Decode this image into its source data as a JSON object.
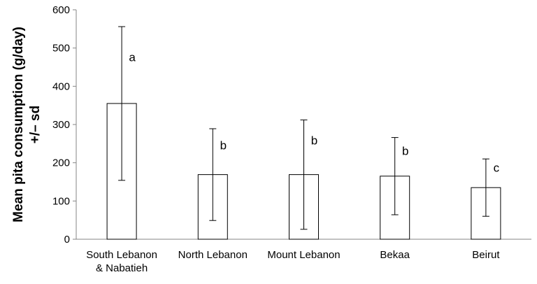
{
  "chart_data": {
    "type": "bar",
    "title": "",
    "xlabel": "",
    "ylabel_lines": [
      "Mean pita consumption (g/day)",
      "+/– sd"
    ],
    "ylim": [
      0,
      600
    ],
    "yticks": [
      0,
      100,
      200,
      300,
      400,
      500,
      600
    ],
    "categories": [
      [
        "South Lebanon",
        "& Nabatieh"
      ],
      [
        "North Lebanon"
      ],
      [
        "Mount Lebanon"
      ],
      [
        "Bekaa"
      ],
      [
        "Beirut"
      ]
    ],
    "values": [
      355,
      169,
      169,
      165,
      135
    ],
    "error_sd": [
      201,
      120,
      143,
      101,
      75
    ],
    "significance_labels": [
      "a",
      "b",
      "b",
      "b",
      "c"
    ],
    "grid": false,
    "legend": "none",
    "bar_fill": "#ffffff",
    "bar_stroke": "#000000"
  }
}
